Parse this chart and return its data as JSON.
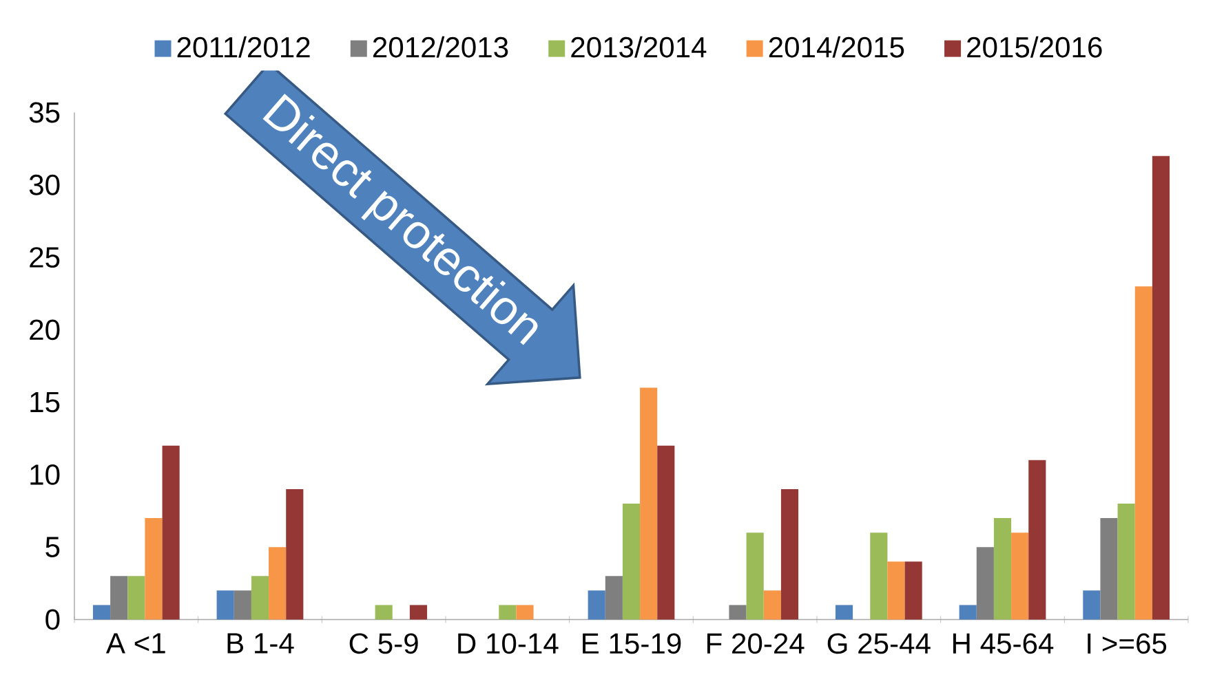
{
  "chart_data": {
    "type": "bar",
    "categories": [
      "A <1",
      "B 1-4",
      "C 5-9",
      "D 10-14",
      "E 15-19",
      "F 20-24",
      "G 25-44",
      "H 45-64",
      "I >=65"
    ],
    "series": [
      {
        "name": "2011/2012",
        "color": "#4f81bd",
        "values": [
          1,
          2,
          0,
          0,
          2,
          0,
          1,
          1,
          2
        ]
      },
      {
        "name": "2012/2013",
        "color": "#7f7f7f",
        "values": [
          3,
          2,
          0,
          0,
          3,
          1,
          0,
          5,
          7
        ]
      },
      {
        "name": "2013/2014",
        "color": "#9bbb59",
        "values": [
          3,
          3,
          1,
          1,
          8,
          6,
          6,
          7,
          8
        ]
      },
      {
        "name": "2014/2015",
        "color": "#f79646",
        "values": [
          7,
          5,
          0,
          1,
          16,
          2,
          4,
          6,
          23
        ]
      },
      {
        "name": "2015/2016",
        "color": "#953735",
        "values": [
          12,
          9,
          1,
          0,
          12,
          9,
          4,
          11,
          32
        ]
      }
    ],
    "ylim": [
      0,
      35
    ],
    "yticks": [
      0,
      5,
      10,
      15,
      20,
      25,
      30,
      35
    ],
    "grid": false,
    "legend": "top",
    "annotations": [
      "Direct protection"
    ]
  }
}
